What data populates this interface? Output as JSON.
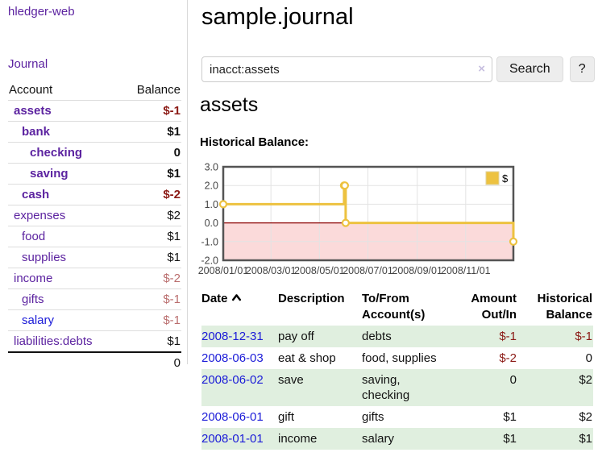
{
  "app": {
    "brand": "hledger-web"
  },
  "sidebar": {
    "journal_label": "Journal",
    "accounts": {
      "header_account": "Account",
      "header_balance": "Balance",
      "rows": [
        {
          "name": "assets",
          "balance": "$-1"
        },
        {
          "name": "bank",
          "balance": "$1"
        },
        {
          "name": "checking",
          "balance": "0"
        },
        {
          "name": "saving",
          "balance": "$1"
        },
        {
          "name": "cash",
          "balance": "$-2"
        },
        {
          "name": "expenses",
          "balance": "$2"
        },
        {
          "name": "food",
          "balance": "$1"
        },
        {
          "name": "supplies",
          "balance": "$1"
        },
        {
          "name": "income",
          "balance": "$-2"
        },
        {
          "name": "gifts",
          "balance": "$-1"
        },
        {
          "name": "salary",
          "balance": "$-1"
        },
        {
          "name": "liabilities:debts",
          "balance": "$1"
        }
      ],
      "total": "0"
    }
  },
  "main": {
    "title": "sample.journal",
    "search": {
      "value": "inacct:assets",
      "clear_icon": "×",
      "search_button": "Search",
      "help_button": "?"
    },
    "account_heading": "assets",
    "section_label": "Historical Balance:"
  },
  "chart_data": {
    "type": "line",
    "step": true,
    "title": "Historical Balance",
    "series": [
      {
        "name": "$",
        "points": [
          {
            "date": "2008-01-01",
            "value": 1
          },
          {
            "date": "2008-06-01",
            "value": 2
          },
          {
            "date": "2008-06-02",
            "value": 2
          },
          {
            "date": "2008-06-03",
            "value": 0
          },
          {
            "date": "2008-12-31",
            "value": -1
          }
        ]
      }
    ],
    "x_range": [
      "2008-01-01",
      "2008-12-31"
    ],
    "ylim": [
      -2,
      3
    ],
    "y_ticks": [
      "3.0",
      "2.0",
      "1.0",
      "0.0",
      "-1.0",
      "-2.0"
    ],
    "x_ticks": [
      {
        "date": "2008-01-01",
        "label": "2008/01/01"
      },
      {
        "date": "2008-03-01",
        "label": "2008/03/01"
      },
      {
        "date": "2008-05-01",
        "label": "2008/05/01"
      },
      {
        "date": "2008-07-01",
        "label": "2008/07/01"
      },
      {
        "date": "2008-09-01",
        "label": "2008/09/01"
      },
      {
        "date": "2008-11-01",
        "label": "2008/11/01"
      }
    ],
    "legend": {
      "label": "$",
      "position": "top-right"
    },
    "grid": true,
    "colors": {
      "series": "#edc240",
      "negative_fill": "#fbdada",
      "zero_line": "#8b0000",
      "grid": "#e3e3e3",
      "border": "#545454"
    }
  },
  "register": {
    "headers": {
      "date": "Date",
      "description": "Description",
      "accounts": "To/From Account(s)",
      "amount": "Amount Out/In",
      "balance": "Historical Balance"
    },
    "rows": [
      {
        "date": "2008-12-31",
        "description": "pay off",
        "accounts": "debts",
        "amount": "$-1",
        "balance": "$-1"
      },
      {
        "date": "2008-06-03",
        "description": "eat & shop",
        "accounts": "food, supplies",
        "amount": "$-2",
        "balance": "0"
      },
      {
        "date": "2008-06-02",
        "description": "save",
        "accounts": "saving, checking",
        "amount": "0",
        "balance": "$2"
      },
      {
        "date": "2008-06-01",
        "description": "gift",
        "accounts": "gifts",
        "amount": "$1",
        "balance": "$2"
      },
      {
        "date": "2008-01-01",
        "description": "income",
        "accounts": "salary",
        "amount": "$1",
        "balance": "$1"
      }
    ]
  }
}
